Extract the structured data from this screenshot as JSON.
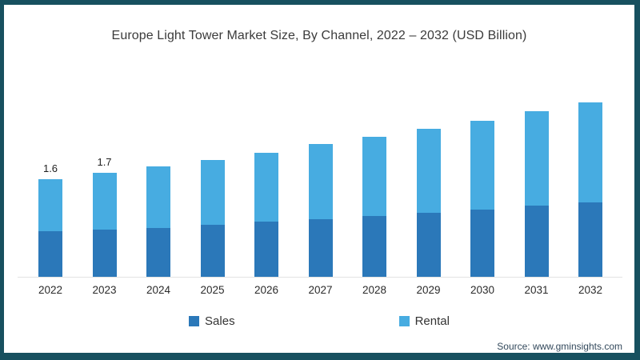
{
  "window": {
    "border_color": "#17505f",
    "background_color": "#ffffff"
  },
  "chart_data": {
    "type": "bar",
    "stacked": true,
    "title": "Europe Light Tower Market Size, By Channel, 2022 – 2032 (USD Billion)",
    "unit": "USD Billion",
    "categories": [
      "2022",
      "2023",
      "2024",
      "2025",
      "2026",
      "2027",
      "2028",
      "2029",
      "2030",
      "2031",
      "2032"
    ],
    "series": [
      {
        "name": "Sales",
        "color": "#2b78b9",
        "values": [
          0.74,
          0.77,
          0.8,
          0.85,
          0.9,
          0.94,
          0.99,
          1.04,
          1.1,
          1.17,
          1.22
        ]
      },
      {
        "name": "Rental",
        "color": "#47ace1",
        "values": [
          0.86,
          0.93,
          1.0,
          1.06,
          1.13,
          1.23,
          1.3,
          1.38,
          1.45,
          1.53,
          1.63
        ]
      }
    ],
    "totals": [
      1.6,
      1.7,
      1.8,
      1.91,
      2.03,
      2.17,
      2.29,
      2.42,
      2.55,
      2.7,
      2.85
    ],
    "bar_labels": [
      "1.6",
      "1.7",
      "",
      "",
      "",
      "",
      "",
      "",
      "",
      "",
      ""
    ],
    "ylim": [
      0,
      3.2
    ],
    "grid": false,
    "y_axis_visible": false,
    "legend_position": "bottom"
  },
  "source": {
    "label": "Source: www.gminsights.com"
  }
}
